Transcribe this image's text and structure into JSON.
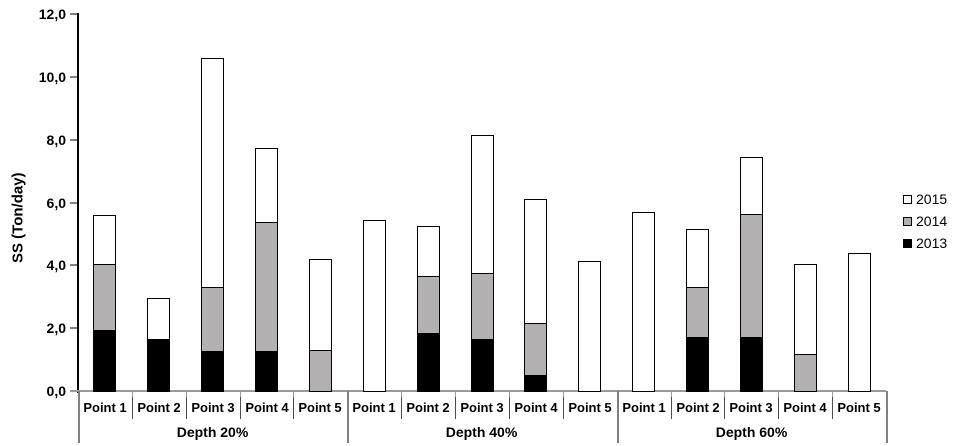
{
  "chart_data": {
    "type": "bar",
    "stacked": true,
    "title": "",
    "ylabel": "SS (Ton/day)",
    "xlabel": "",
    "ylim": [
      0,
      12
    ],
    "ytick_step": 2,
    "ytick_labels": [
      "0,0",
      "2,0",
      "4,0",
      "6,0",
      "8,0",
      "10,0",
      "12,0"
    ],
    "decimal_separator": ",",
    "grid": false,
    "legend_position": "right",
    "legend_order": [
      "2015",
      "2014",
      "2013"
    ],
    "groups": [
      {
        "label": "Depth 20%",
        "points": [
          "Point 1",
          "Point 2",
          "Point 3",
          "Point 4",
          "Point 5"
        ]
      },
      {
        "label": "Depth 40%",
        "points": [
          "Point 1",
          "Point 2",
          "Point 3",
          "Point 4",
          "Point 5"
        ]
      },
      {
        "label": "Depth 60%",
        "points": [
          "Point 1",
          "Point 2",
          "Point 3",
          "Point 4",
          "Point 5"
        ]
      }
    ],
    "series": [
      {
        "name": "2013",
        "color": "#000000",
        "values": [
          1.95,
          1.65,
          1.25,
          1.25,
          0,
          0,
          1.85,
          1.65,
          0.5,
          0,
          0,
          1.7,
          1.7,
          0,
          0
        ]
      },
      {
        "name": "2014",
        "color": "#b2b0b0",
        "values": [
          2.1,
          0,
          2.05,
          4.15,
          1.3,
          0,
          1.8,
          2.1,
          1.65,
          0,
          0,
          1.6,
          3.95,
          1.2,
          0
        ]
      },
      {
        "name": "2015",
        "color": "#ffffff",
        "values": [
          1.55,
          1.3,
          7.3,
          2.35,
          2.9,
          5.45,
          1.6,
          4.4,
          3.95,
          4.15,
          5.7,
          1.85,
          1.8,
          2.85,
          4.4
        ]
      }
    ],
    "colors": {
      "y_axis": "#000000",
      "x_axis": "#9b9b9b",
      "tick": "#808080",
      "bar_border": "#000000"
    }
  }
}
